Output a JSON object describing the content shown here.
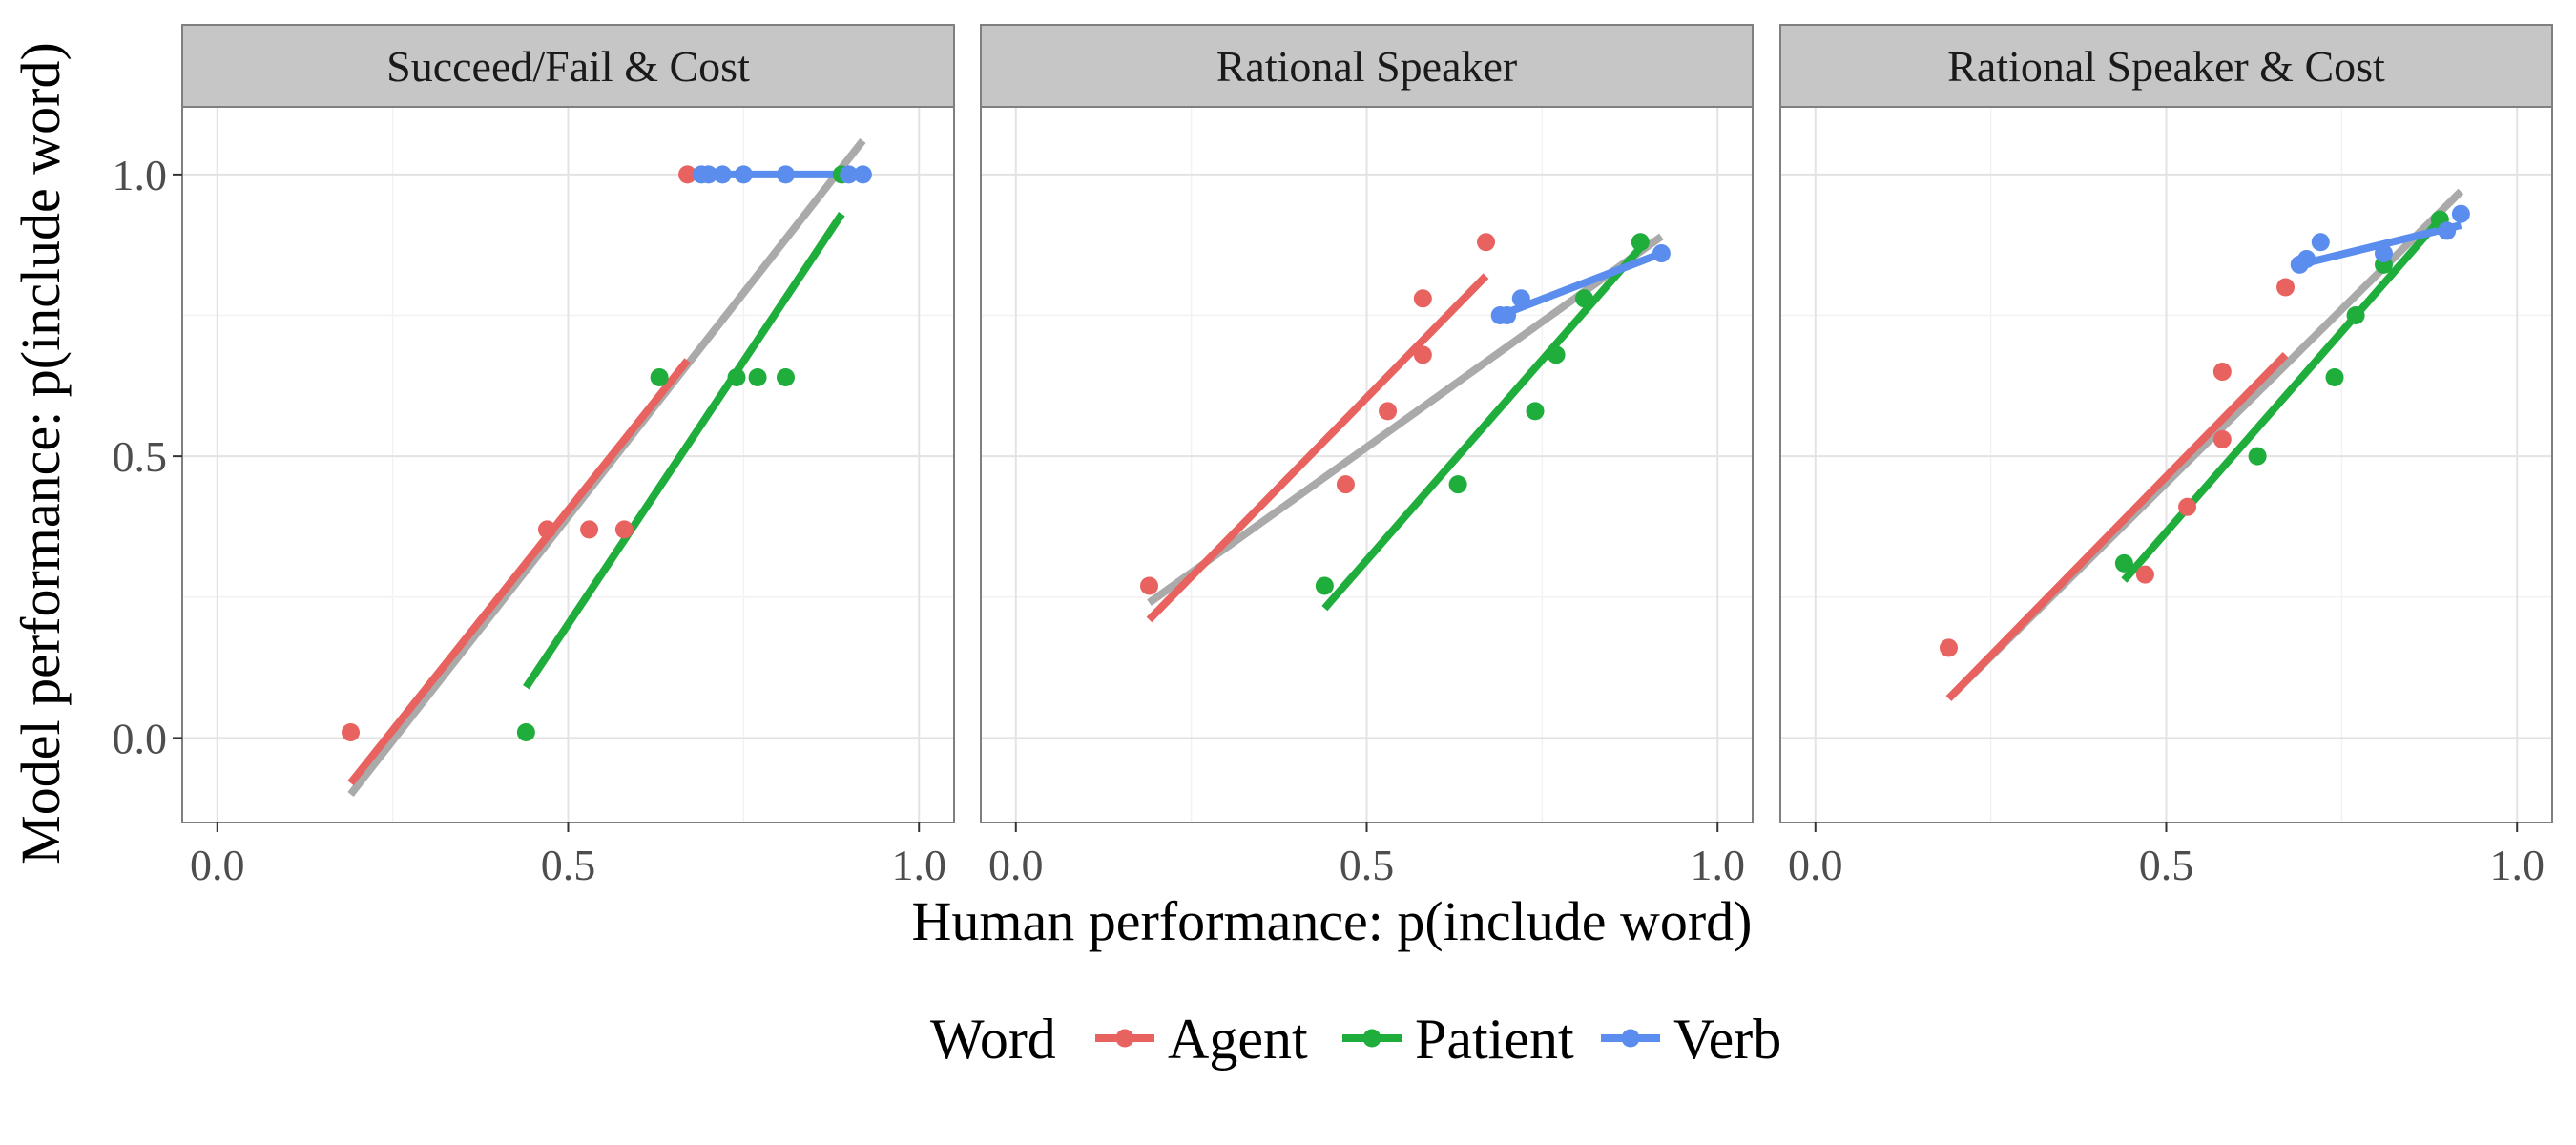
{
  "chart_data": {
    "type": "scatter",
    "layout": "faceted",
    "xlabel": "Human performance: p(include word)",
    "ylabel": "Model performance: p(include word)",
    "xlim": [
      -0.05,
      1.05
    ],
    "ylim": [
      -0.15,
      1.12
    ],
    "xticks": [
      0.0,
      0.5,
      1.0
    ],
    "yticks": [
      0.0,
      0.5,
      1.0
    ],
    "xtick_labels": [
      "0.0",
      "0.5",
      "1.0"
    ],
    "ytick_labels": [
      "0.0",
      "0.5",
      "1.0"
    ],
    "grid": true,
    "legend": {
      "title": "Word",
      "position": "bottom",
      "entries": [
        {
          "label": "Agent",
          "color": "#e8625f"
        },
        {
          "label": "Patient",
          "color": "#1fad3c"
        },
        {
          "label": "Verb",
          "color": "#5a8ded"
        }
      ]
    },
    "overall_fit_color": "#aaaaaa",
    "panels": [
      {
        "title": "Succeed/Fail & Cost",
        "series": [
          {
            "name": "Agent",
            "color": "#e8625f",
            "points": [
              [
                0.19,
                0.01
              ],
              [
                0.47,
                0.37
              ],
              [
                0.53,
                0.37
              ],
              [
                0.58,
                0.37
              ],
              [
                0.67,
                1.0
              ]
            ],
            "fit": [
              [
                0.19,
                -0.08
              ],
              [
                0.67,
                0.67
              ]
            ]
          },
          {
            "name": "Patient",
            "color": "#1fad3c",
            "points": [
              [
                0.44,
                0.01
              ],
              [
                0.63,
                0.64
              ],
              [
                0.74,
                0.64
              ],
              [
                0.77,
                0.64
              ],
              [
                0.81,
                0.64
              ],
              [
                0.89,
                1.0
              ]
            ],
            "fit": [
              [
                0.44,
                0.09
              ],
              [
                0.89,
                0.93
              ]
            ]
          },
          {
            "name": "Verb",
            "color": "#5a8ded",
            "points": [
              [
                0.69,
                1.0
              ],
              [
                0.7,
                1.0
              ],
              [
                0.72,
                1.0
              ],
              [
                0.75,
                1.0
              ],
              [
                0.81,
                1.0
              ],
              [
                0.9,
                1.0
              ],
              [
                0.92,
                1.0
              ]
            ],
            "fit": [
              [
                0.69,
                1.0
              ],
              [
                0.92,
                1.0
              ]
            ]
          }
        ],
        "overall_fit": [
          [
            0.19,
            -0.1
          ],
          [
            0.92,
            1.06
          ]
        ]
      },
      {
        "title": "Rational Speaker",
        "series": [
          {
            "name": "Agent",
            "color": "#e8625f",
            "points": [
              [
                0.19,
                0.27
              ],
              [
                0.47,
                0.45
              ],
              [
                0.53,
                0.58
              ],
              [
                0.58,
                0.68
              ],
              [
                0.58,
                0.78
              ],
              [
                0.67,
                0.88
              ]
            ],
            "fit": [
              [
                0.19,
                0.21
              ],
              [
                0.67,
                0.82
              ]
            ]
          },
          {
            "name": "Patient",
            "color": "#1fad3c",
            "points": [
              [
                0.44,
                0.27
              ],
              [
                0.63,
                0.45
              ],
              [
                0.74,
                0.58
              ],
              [
                0.77,
                0.68
              ],
              [
                0.81,
                0.78
              ],
              [
                0.89,
                0.88
              ]
            ],
            "fit": [
              [
                0.44,
                0.23
              ],
              [
                0.89,
                0.87
              ]
            ]
          },
          {
            "name": "Verb",
            "color": "#5a8ded",
            "points": [
              [
                0.69,
                0.75
              ],
              [
                0.7,
                0.75
              ],
              [
                0.72,
                0.78
              ],
              [
                0.92,
                0.86
              ]
            ],
            "fit": [
              [
                0.69,
                0.75
              ],
              [
                0.92,
                0.86
              ]
            ]
          }
        ],
        "overall_fit": [
          [
            0.19,
            0.24
          ],
          [
            0.92,
            0.89
          ]
        ]
      },
      {
        "title": "Rational Speaker & Cost",
        "series": [
          {
            "name": "Agent",
            "color": "#e8625f",
            "points": [
              [
                0.19,
                0.16
              ],
              [
                0.47,
                0.29
              ],
              [
                0.53,
                0.41
              ],
              [
                0.58,
                0.53
              ],
              [
                0.58,
                0.65
              ],
              [
                0.67,
                0.8
              ]
            ],
            "fit": [
              [
                0.19,
                0.07
              ],
              [
                0.67,
                0.68
              ]
            ]
          },
          {
            "name": "Patient",
            "color": "#1fad3c",
            "points": [
              [
                0.44,
                0.31
              ],
              [
                0.63,
                0.5
              ],
              [
                0.74,
                0.64
              ],
              [
                0.77,
                0.75
              ],
              [
                0.81,
                0.84
              ],
              [
                0.89,
                0.92
              ]
            ],
            "fit": [
              [
                0.44,
                0.28
              ],
              [
                0.89,
                0.92
              ]
            ]
          },
          {
            "name": "Verb",
            "color": "#5a8ded",
            "points": [
              [
                0.69,
                0.84
              ],
              [
                0.7,
                0.85
              ],
              [
                0.72,
                0.88
              ],
              [
                0.81,
                0.86
              ],
              [
                0.9,
                0.9
              ],
              [
                0.92,
                0.93
              ]
            ],
            "fit": [
              [
                0.69,
                0.84
              ],
              [
                0.92,
                0.91
              ]
            ]
          }
        ],
        "overall_fit": [
          [
            0.19,
            0.07
          ],
          [
            0.92,
            0.97
          ]
        ]
      }
    ]
  }
}
